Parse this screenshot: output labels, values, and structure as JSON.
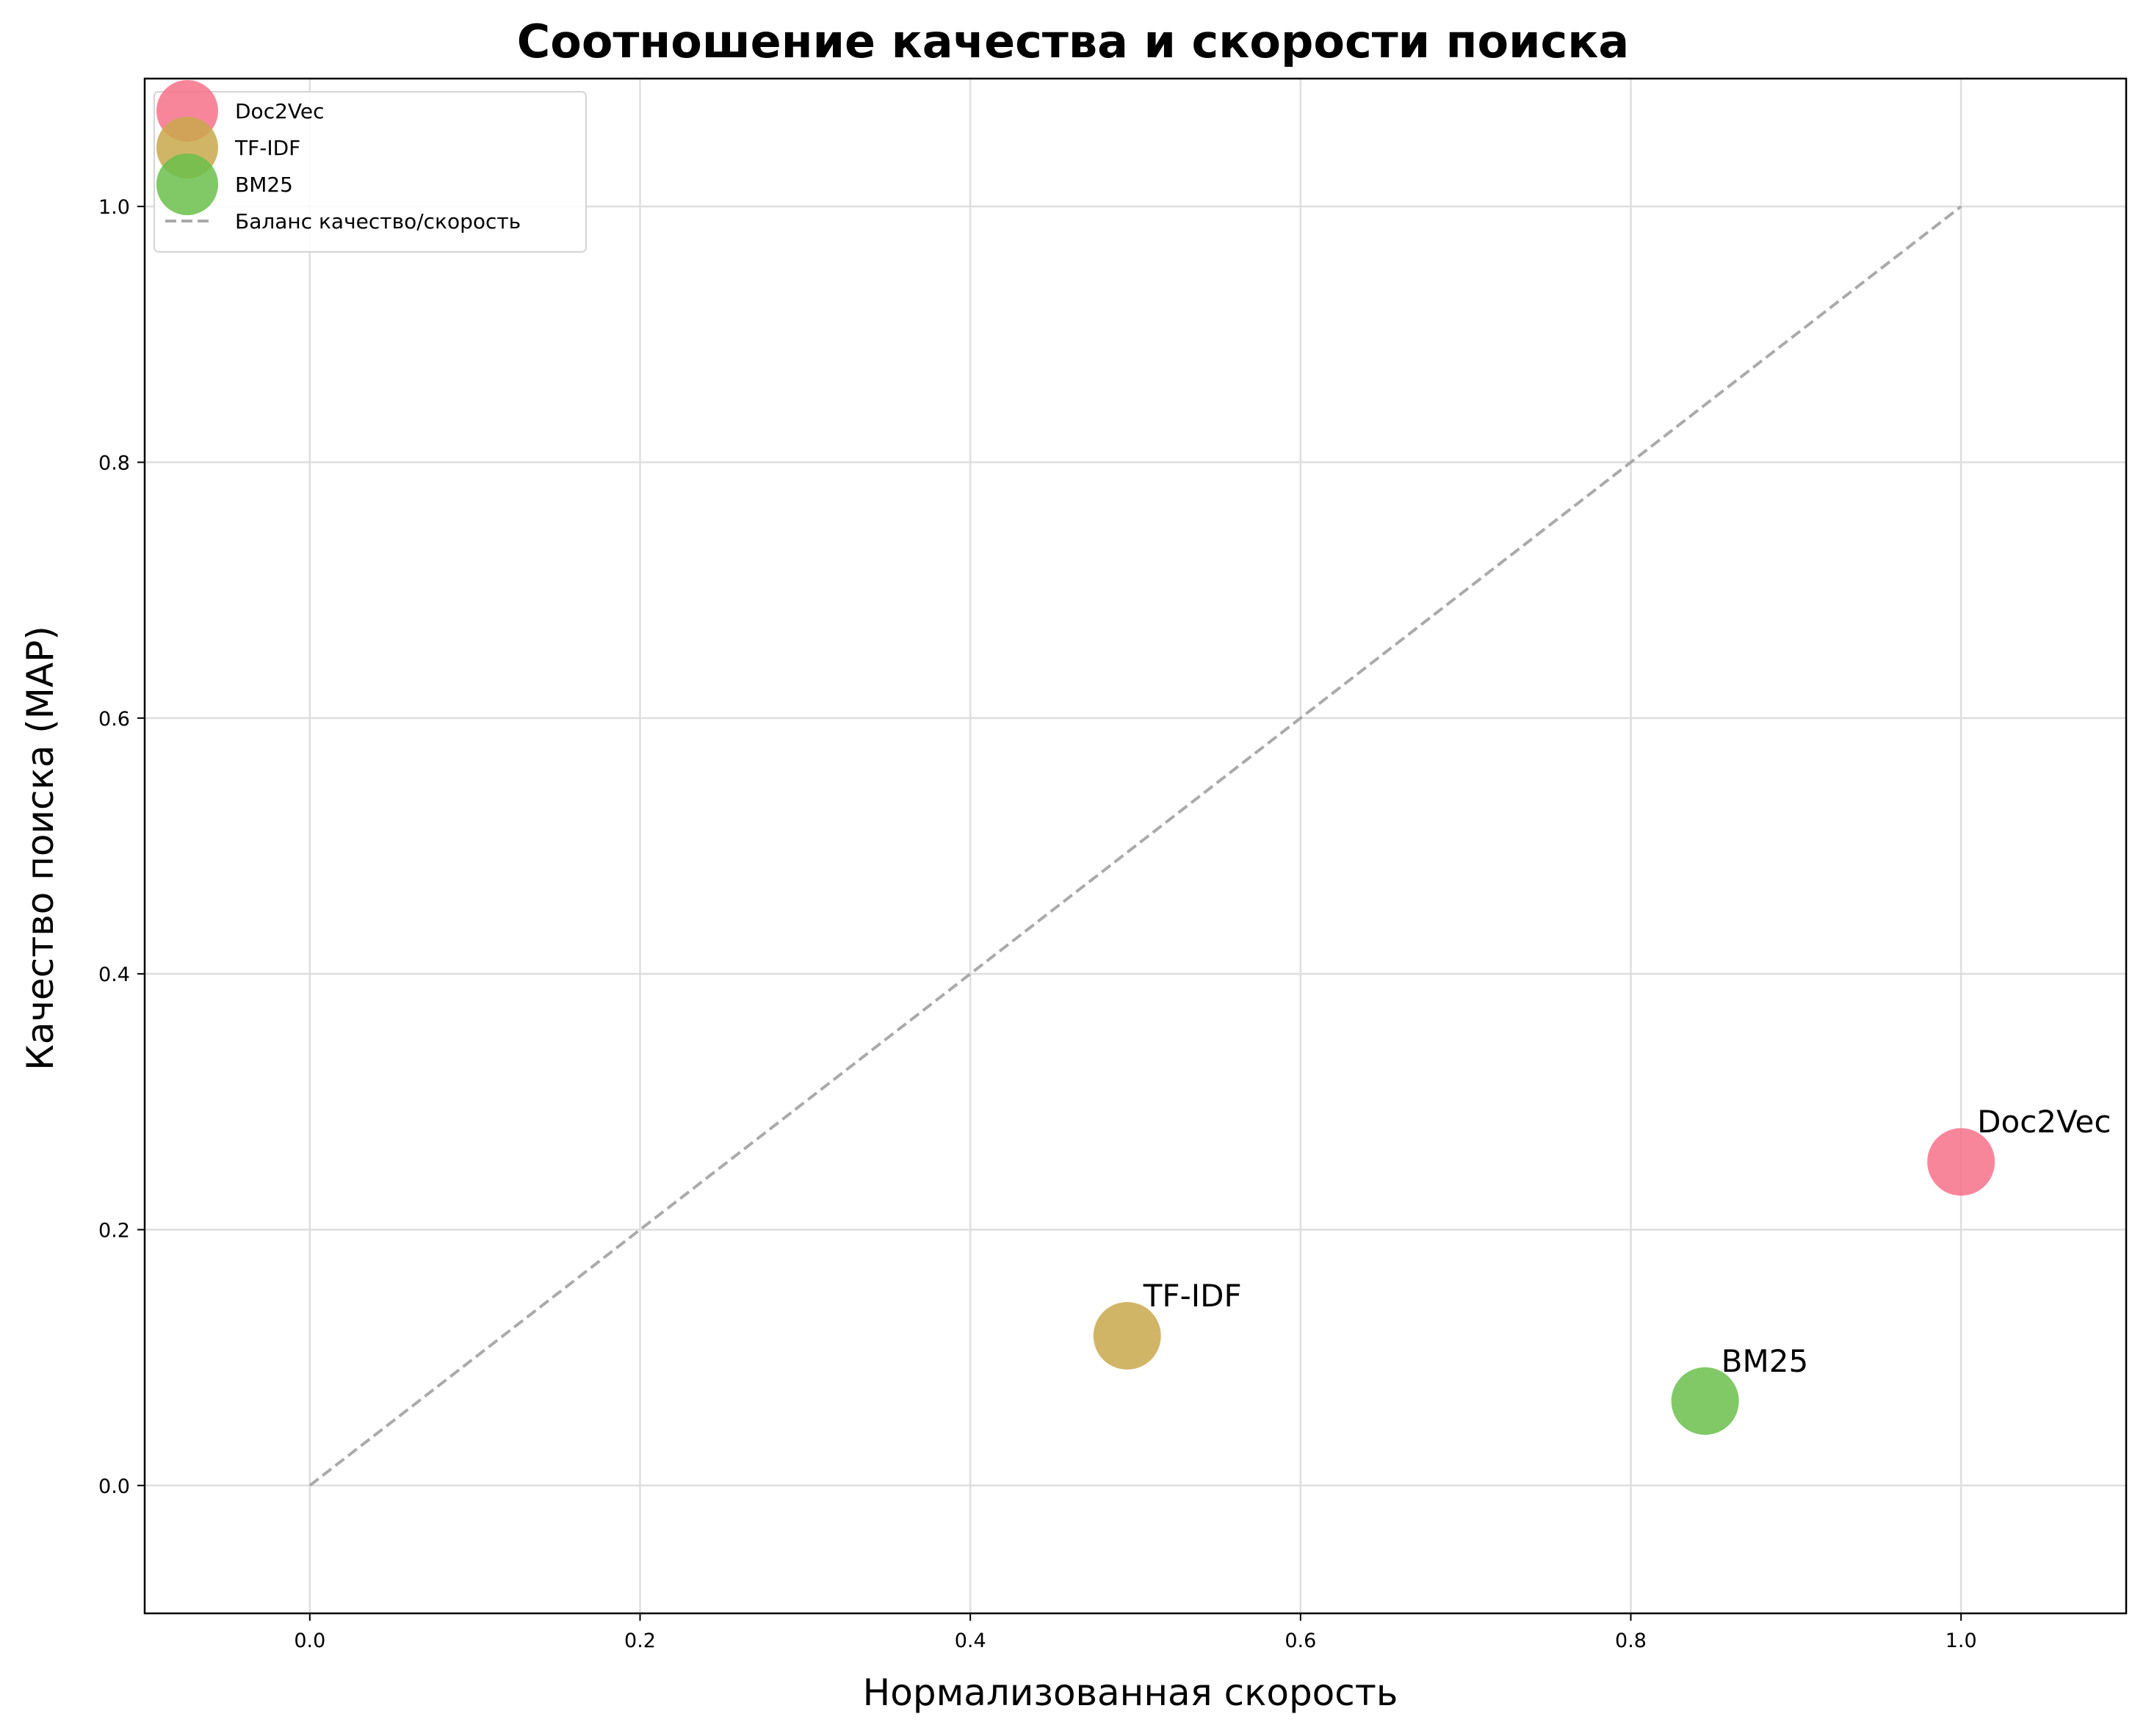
{
  "chart_data": {
    "type": "scatter",
    "title": "Соотношение качества и скорости поиска",
    "xlabel": "Нормализованная скорость",
    "ylabel": "Качество поиска (MAP)",
    "xlim": [
      -0.1,
      1.1
    ],
    "ylim": [
      -0.1,
      1.1
    ],
    "xticks": [
      0.0,
      0.2,
      0.4,
      0.6,
      0.8,
      1.0
    ],
    "xtick_labels": [
      "0.0",
      "0.2",
      "0.4",
      "0.6",
      "0.8",
      "1.0"
    ],
    "yticks": [
      0.0,
      0.2,
      0.4,
      0.6,
      0.8,
      1.0
    ],
    "ytick_labels": [
      "0.0",
      "0.2",
      "0.4",
      "0.6",
      "0.8",
      "1.0"
    ],
    "grid": true,
    "legend_position": "top-left",
    "series": [
      {
        "name": "Doc2Vec",
        "x": 1.0,
        "y": 0.253,
        "color": "#f77189",
        "label": "Doc2Vec"
      },
      {
        "name": "TF-IDF",
        "x": 0.495,
        "y": 0.117,
        "color": "#c9a84c",
        "label": "TF-IDF"
      },
      {
        "name": "BM25",
        "x": 0.845,
        "y": 0.066,
        "color": "#6abf4b",
        "label": "BM25"
      }
    ],
    "reference_line": {
      "name": "Баланс качество/скорость",
      "x": [
        0.0,
        1.0
      ],
      "y": [
        0.0,
        1.0
      ],
      "style": "dashed",
      "color": "#aaaaaa"
    }
  }
}
